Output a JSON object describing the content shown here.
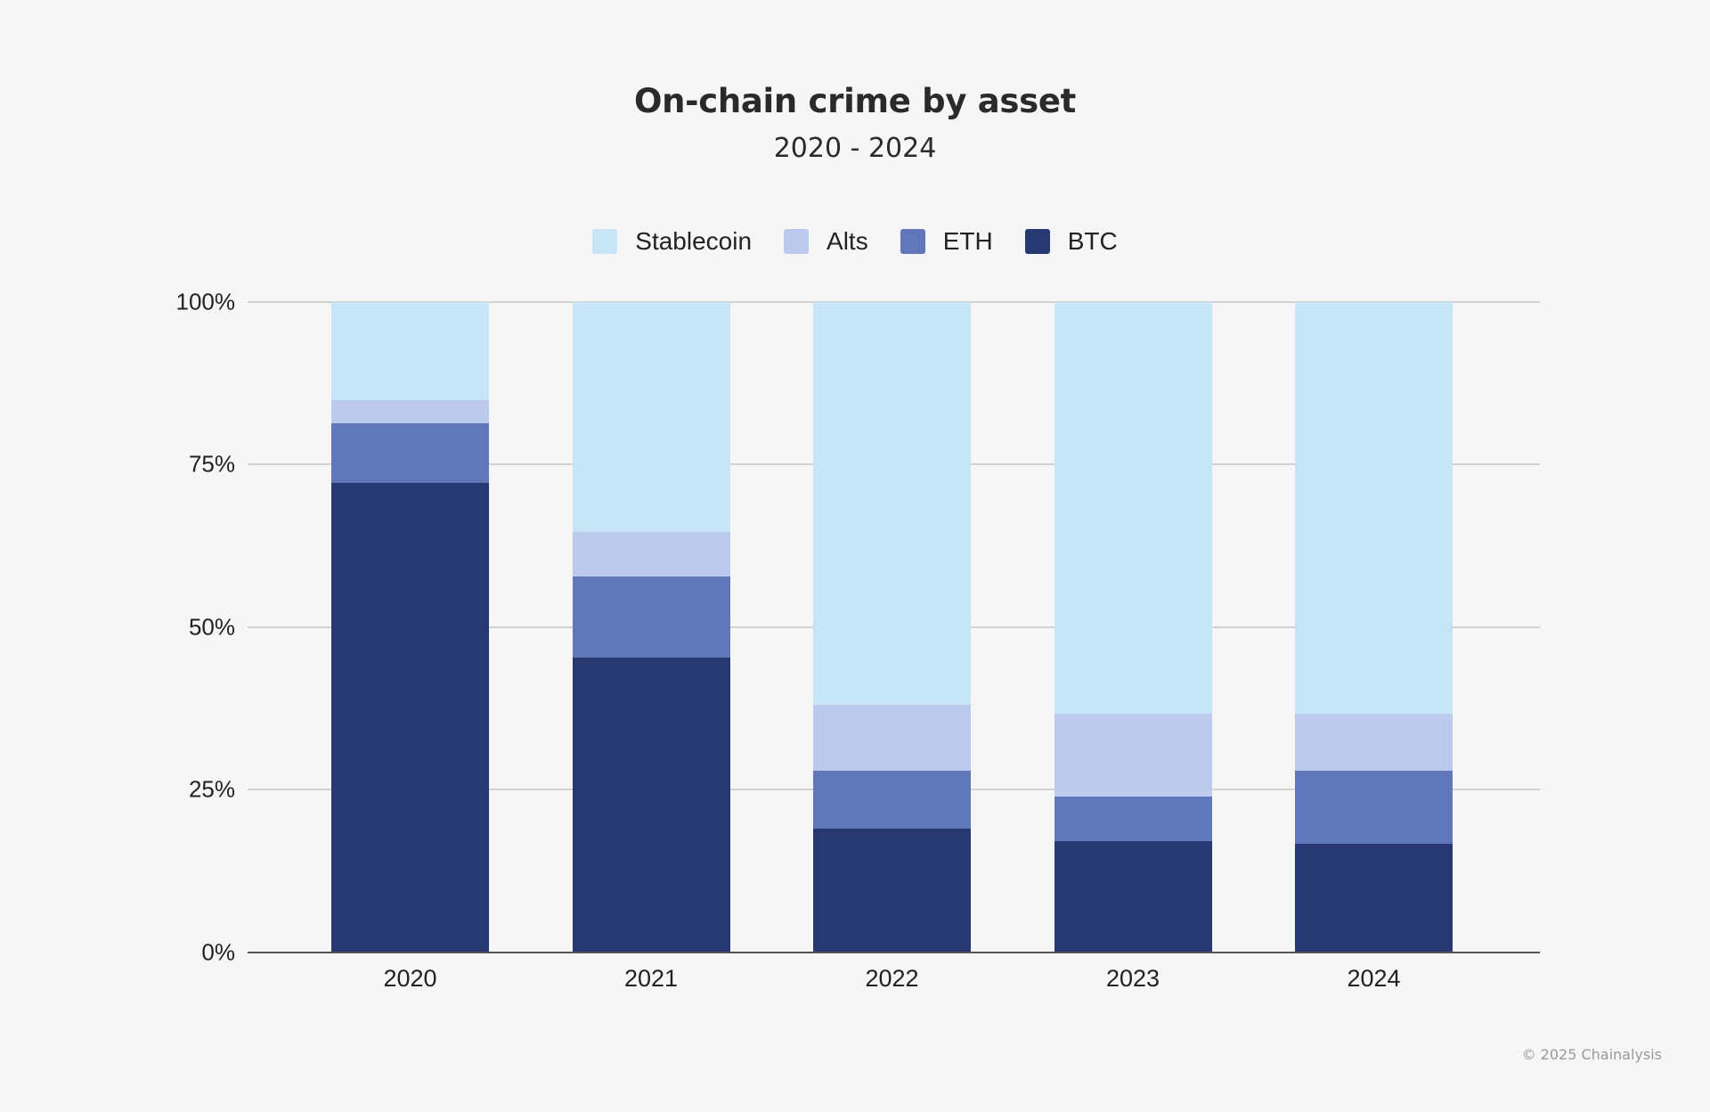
{
  "header": {
    "title": "On-chain crime by asset",
    "subtitle": "2020 - 2024"
  },
  "footer": {
    "copyright": "© 2025 Chainalysis"
  },
  "colors": {
    "Stablecoin": "#c6e5f6",
    "Alts": "#bccaed",
    "ETH": "#6078ba",
    "BTC": "#283972",
    "background": "#f6f6f6",
    "gridline": "#d2d2d2",
    "axis": "#555555"
  },
  "legend": [
    {
      "label": "Stablecoin",
      "color": "#c6e5f6"
    },
    {
      "label": "Alts",
      "color": "#bccaed"
    },
    {
      "label": "ETH",
      "color": "#6078ba"
    },
    {
      "label": "BTC",
      "color": "#283972"
    }
  ],
  "y_ticks": [
    "0%",
    "25%",
    "50%",
    "75%",
    "100%"
  ],
  "chart_data": {
    "type": "bar",
    "stacked": true,
    "normalized": true,
    "title": "On-chain crime by asset",
    "subtitle": "2020 - 2024",
    "xlabel": "",
    "ylabel": "",
    "ylim": [
      0,
      100
    ],
    "y_ticks": [
      "0%",
      "25%",
      "50%",
      "75%",
      "100%"
    ],
    "grid": true,
    "legend_position": "top",
    "categories": [
      "2020",
      "2021",
      "2022",
      "2023",
      "2024"
    ],
    "series": [
      {
        "name": "BTC",
        "color": "#283972",
        "values": [
          72.2,
          45.3,
          19.0,
          17.1,
          16.7
        ]
      },
      {
        "name": "ETH",
        "color": "#6078ba",
        "values": [
          9.2,
          12.5,
          8.9,
          6.8,
          11.2
        ]
      },
      {
        "name": "Alts",
        "color": "#bccaed",
        "values": [
          3.6,
          6.8,
          10.1,
          12.7,
          8.8
        ]
      },
      {
        "name": "Stablecoin",
        "color": "#c6e5f6",
        "values": [
          15.0,
          35.4,
          62.0,
          63.4,
          63.3
        ]
      }
    ],
    "source": "© 2025 Chainalysis"
  }
}
